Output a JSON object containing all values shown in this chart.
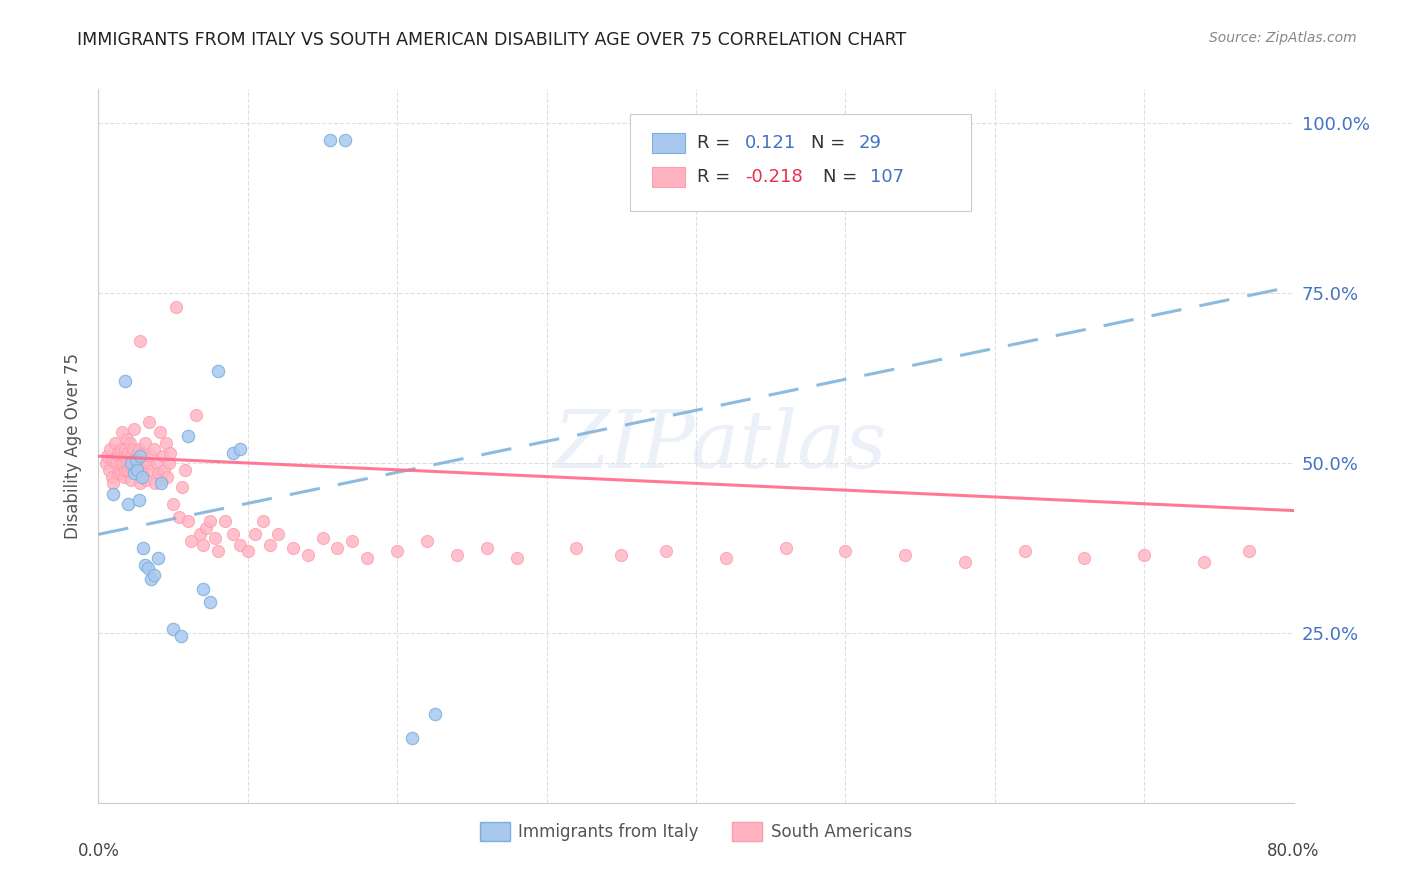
{
  "title": "IMMIGRANTS FROM ITALY VS SOUTH AMERICAN DISABILITY AGE OVER 75 CORRELATION CHART",
  "source": "Source: ZipAtlas.com",
  "ylabel": "Disability Age Over 75",
  "ytick_positions": [
    0.0,
    0.25,
    0.5,
    0.75,
    1.0
  ],
  "ytick_right_labels": [
    "",
    "25.0%",
    "50.0%",
    "75.0%",
    "100.0%"
  ],
  "xlim": [
    0.0,
    0.8
  ],
  "ylim": [
    0.0,
    1.05
  ],
  "watermark": "ZIPatlas",
  "legend_italy_r": "0.121",
  "legend_italy_n": "29",
  "legend_sa_r": "-0.218",
  "legend_sa_n": "107",
  "italy_color": "#a8c8f0",
  "italy_edge_color": "#7ab0d8",
  "sa_color": "#ffb3c1",
  "sa_edge_color": "#ff9ab0",
  "italy_line_color": "#7ab0d8",
  "sa_line_color": "#ff6b8a",
  "blue_text_color": "#4472c4",
  "red_text_color": "#e8304a",
  "title_color": "#222222",
  "source_color": "#888888",
  "grid_color": "#d8d8d8",
  "ylabel_color": "#555555",
  "italy_x": [
    0.01,
    0.018,
    0.02,
    0.022,
    0.024,
    0.025,
    0.026,
    0.027,
    0.028,
    0.029,
    0.03,
    0.031,
    0.033,
    0.035,
    0.037,
    0.04,
    0.042,
    0.05,
    0.055,
    0.06,
    0.07,
    0.075,
    0.08,
    0.09,
    0.095,
    0.155,
    0.165,
    0.21,
    0.225
  ],
  "italy_y": [
    0.455,
    0.62,
    0.44,
    0.5,
    0.485,
    0.505,
    0.49,
    0.445,
    0.51,
    0.48,
    0.375,
    0.35,
    0.345,
    0.33,
    0.335,
    0.36,
    0.47,
    0.255,
    0.245,
    0.54,
    0.315,
    0.295,
    0.635,
    0.515,
    0.52,
    0.975,
    0.975,
    0.095,
    0.13
  ],
  "sa_x": [
    0.005,
    0.006,
    0.007,
    0.008,
    0.009,
    0.01,
    0.01,
    0.011,
    0.012,
    0.013,
    0.013,
    0.014,
    0.014,
    0.015,
    0.015,
    0.016,
    0.016,
    0.017,
    0.017,
    0.018,
    0.018,
    0.019,
    0.019,
    0.02,
    0.02,
    0.021,
    0.021,
    0.022,
    0.022,
    0.023,
    0.023,
    0.024,
    0.024,
    0.025,
    0.025,
    0.026,
    0.027,
    0.027,
    0.028,
    0.028,
    0.029,
    0.03,
    0.03,
    0.031,
    0.032,
    0.033,
    0.034,
    0.035,
    0.036,
    0.037,
    0.038,
    0.039,
    0.04,
    0.041,
    0.042,
    0.043,
    0.044,
    0.045,
    0.046,
    0.047,
    0.048,
    0.05,
    0.052,
    0.054,
    0.056,
    0.058,
    0.06,
    0.062,
    0.065,
    0.068,
    0.07,
    0.072,
    0.075,
    0.078,
    0.08,
    0.085,
    0.09,
    0.095,
    0.1,
    0.105,
    0.11,
    0.115,
    0.12,
    0.13,
    0.14,
    0.15,
    0.16,
    0.17,
    0.18,
    0.2,
    0.22,
    0.24,
    0.26,
    0.28,
    0.32,
    0.35,
    0.38,
    0.42,
    0.46,
    0.5,
    0.54,
    0.58,
    0.62,
    0.66,
    0.7,
    0.74,
    0.77
  ],
  "sa_y": [
    0.5,
    0.51,
    0.49,
    0.52,
    0.48,
    0.505,
    0.47,
    0.53,
    0.5,
    0.515,
    0.485,
    0.51,
    0.49,
    0.52,
    0.485,
    0.5,
    0.545,
    0.51,
    0.48,
    0.52,
    0.49,
    0.535,
    0.5,
    0.515,
    0.49,
    0.53,
    0.495,
    0.51,
    0.475,
    0.52,
    0.505,
    0.495,
    0.55,
    0.51,
    0.49,
    0.505,
    0.52,
    0.495,
    0.68,
    0.47,
    0.5,
    0.49,
    0.515,
    0.53,
    0.475,
    0.5,
    0.56,
    0.51,
    0.49,
    0.52,
    0.47,
    0.5,
    0.485,
    0.545,
    0.475,
    0.51,
    0.49,
    0.53,
    0.48,
    0.5,
    0.515,
    0.44,
    0.73,
    0.42,
    0.465,
    0.49,
    0.415,
    0.385,
    0.57,
    0.395,
    0.38,
    0.405,
    0.415,
    0.39,
    0.37,
    0.415,
    0.395,
    0.38,
    0.37,
    0.395,
    0.415,
    0.38,
    0.395,
    0.375,
    0.365,
    0.39,
    0.375,
    0.385,
    0.36,
    0.37,
    0.385,
    0.365,
    0.375,
    0.36,
    0.375,
    0.365,
    0.37,
    0.36,
    0.375,
    0.37,
    0.365,
    0.355,
    0.37,
    0.36,
    0.365,
    0.355,
    0.37
  ],
  "italy_line_x0": 0.0,
  "italy_line_x1": 0.8,
  "italy_line_y0": 0.395,
  "italy_line_y1": 0.76,
  "sa_line_x0": 0.0,
  "sa_line_x1": 0.8,
  "sa_line_y0": 0.51,
  "sa_line_y1": 0.43
}
